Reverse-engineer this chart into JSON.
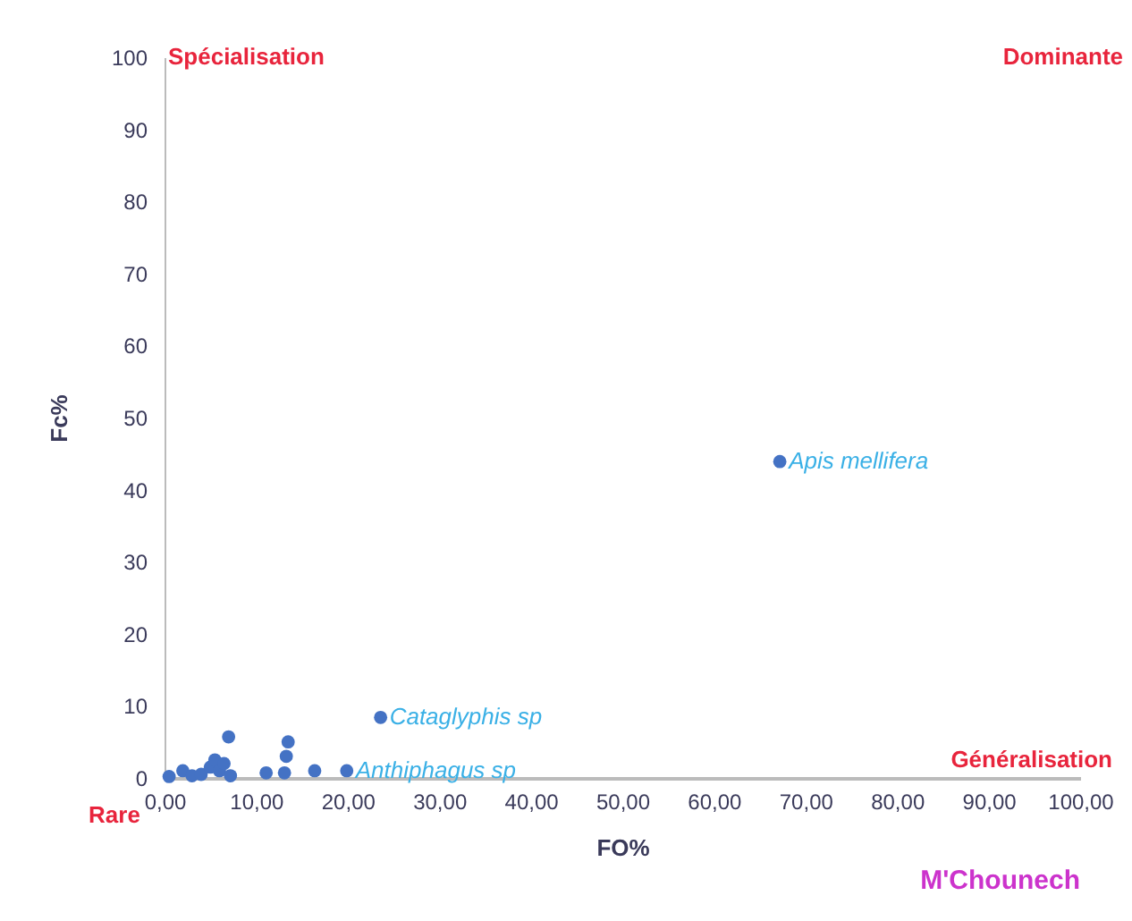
{
  "chart_data": {
    "type": "scatter",
    "xlabel": "FO%",
    "ylabel": "Fc%",
    "x": [
      67.2,
      23.6,
      19.9,
      16.4,
      13.5,
      13.3,
      13.1,
      11.1,
      7.0,
      0.5,
      2.0,
      3.0,
      4.0,
      5.0,
      5.5,
      6.0,
      6.5,
      7.2
    ],
    "values": [
      43.9,
      8.4,
      1.0,
      1.0,
      5.0,
      3.0,
      0.7,
      0.7,
      5.7,
      0.2,
      1.0,
      0.3,
      0.5,
      1.5,
      2.5,
      1.0,
      2.0,
      0.3
    ],
    "color": "#4472c4",
    "marker": "circle",
    "xlim": [
      0,
      100
    ],
    "ylim": [
      0,
      100
    ],
    "xticks": [
      {
        "value": 0,
        "label": "0,00"
      },
      {
        "value": 10,
        "label": "10,00"
      },
      {
        "value": 20,
        "label": "20,00"
      },
      {
        "value": 30,
        "label": "30,00"
      },
      {
        "value": 40,
        "label": "40,00"
      },
      {
        "value": 50,
        "label": "50,00"
      },
      {
        "value": 60,
        "label": "60,00"
      },
      {
        "value": 70,
        "label": "70,00"
      },
      {
        "value": 80,
        "label": "80,00"
      },
      {
        "value": 90,
        "label": "90,00"
      },
      {
        "value": 100,
        "label": "100,00"
      }
    ],
    "yticks": [
      0,
      10,
      20,
      30,
      40,
      50,
      60,
      70,
      80,
      90,
      100
    ],
    "grid": false,
    "annotations": [
      {
        "text": "Apis mellifera",
        "x": 67.2,
        "y": 43.9
      },
      {
        "text": "Cataglyphis sp",
        "x": 23.6,
        "y": 8.4
      },
      {
        "text": "Anthiphagus sp",
        "x": 19.9,
        "y": 1.0
      },
      "Spécialisation",
      "Dominante",
      "Rare",
      "Généralisation",
      "M'Chounech"
    ]
  }
}
